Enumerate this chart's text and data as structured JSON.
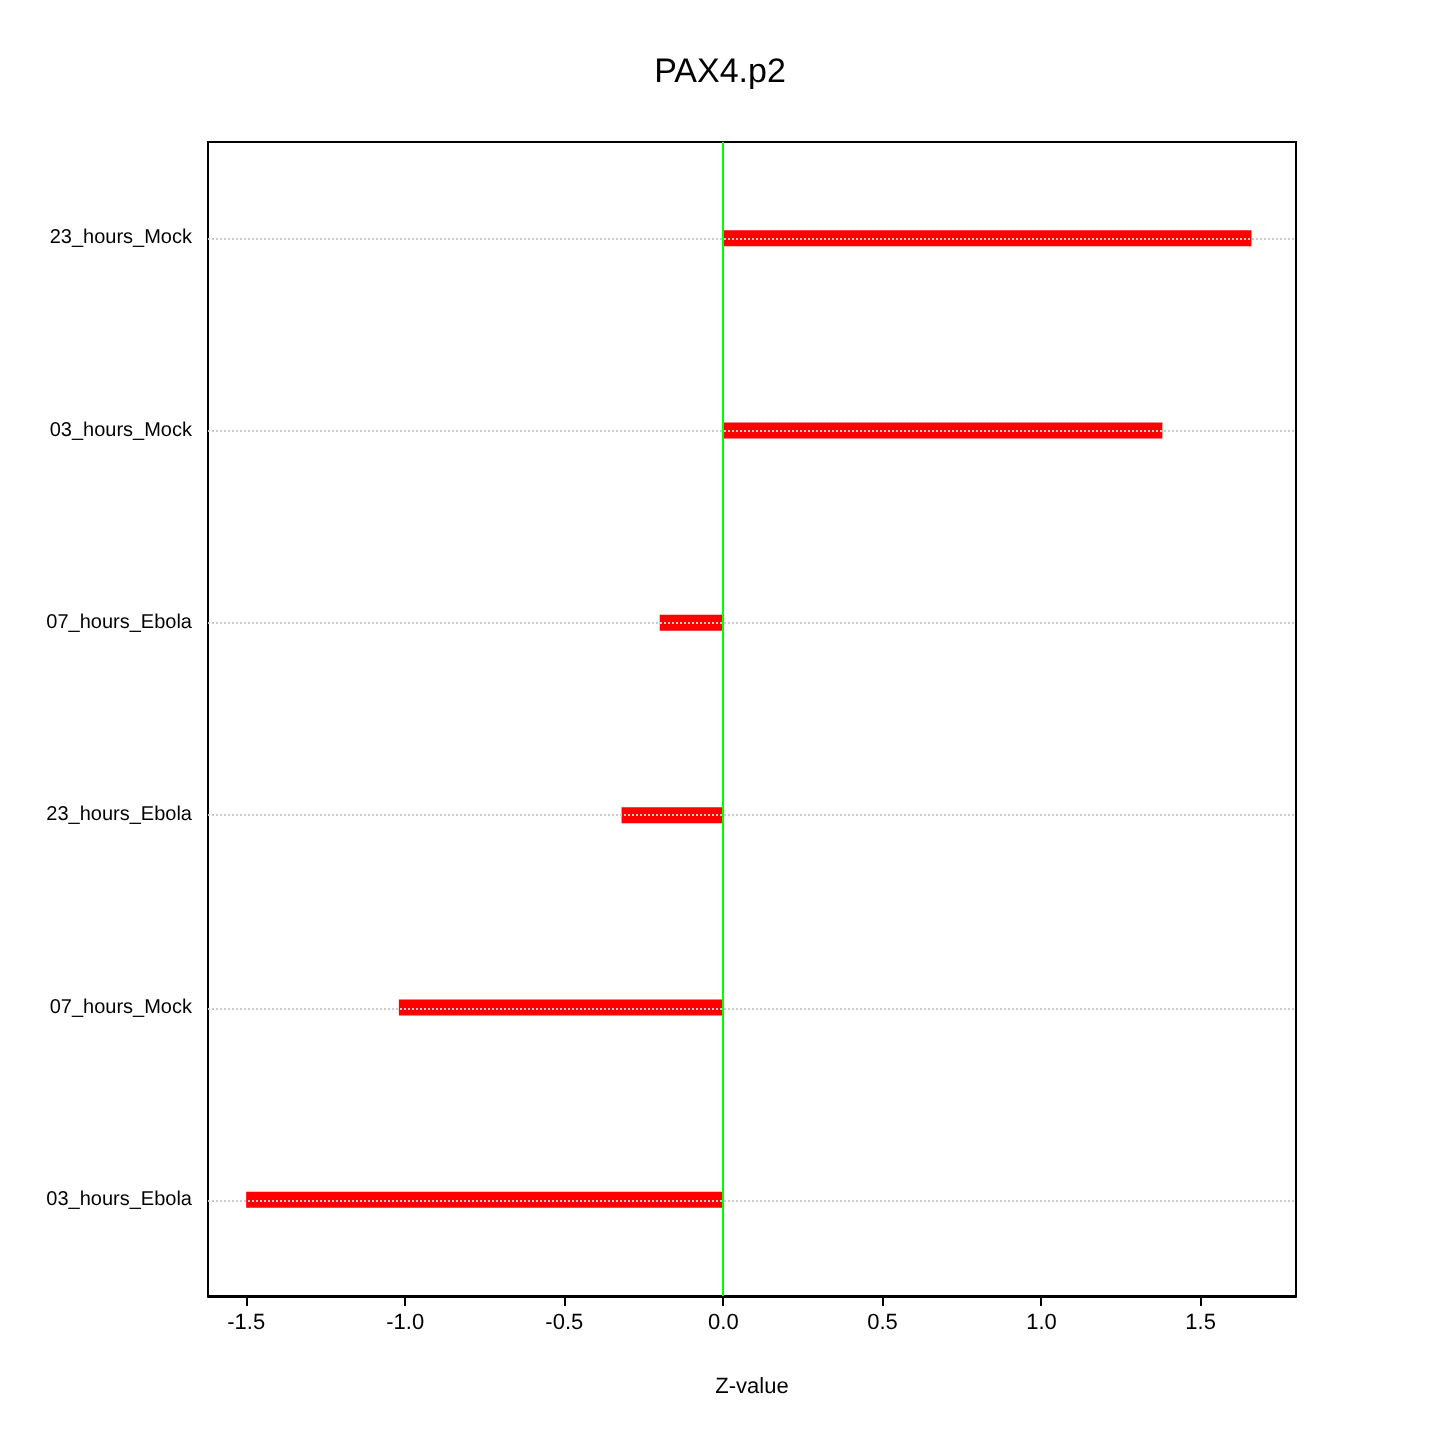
{
  "chart_data": {
    "type": "bar",
    "orientation": "horizontal",
    "title": "PAX4.p2",
    "xlabel": "Z-value",
    "categories": [
      "23_hours_Mock",
      "03_hours_Mock",
      "07_hours_Ebola",
      "23_hours_Ebola",
      "07_hours_Mock",
      "03_hours_Ebola"
    ],
    "values": [
      1.66,
      1.38,
      -0.2,
      -0.32,
      -1.02,
      -1.5
    ],
    "color": "#ff0000",
    "xlim": [
      -1.62,
      1.8
    ],
    "xticks": [
      -1.5,
      {
        "value": -1,
        "label": "-1.0"
      },
      -0.5,
      {
        "value": 0,
        "label": "0.0"
      },
      0.5,
      {
        "value": 1,
        "label": "1.0"
      },
      1.5
    ],
    "ref_lines": [
      {
        "axis": "x",
        "value": 0,
        "color": "#00ff00"
      }
    ],
    "grid": "y"
  }
}
